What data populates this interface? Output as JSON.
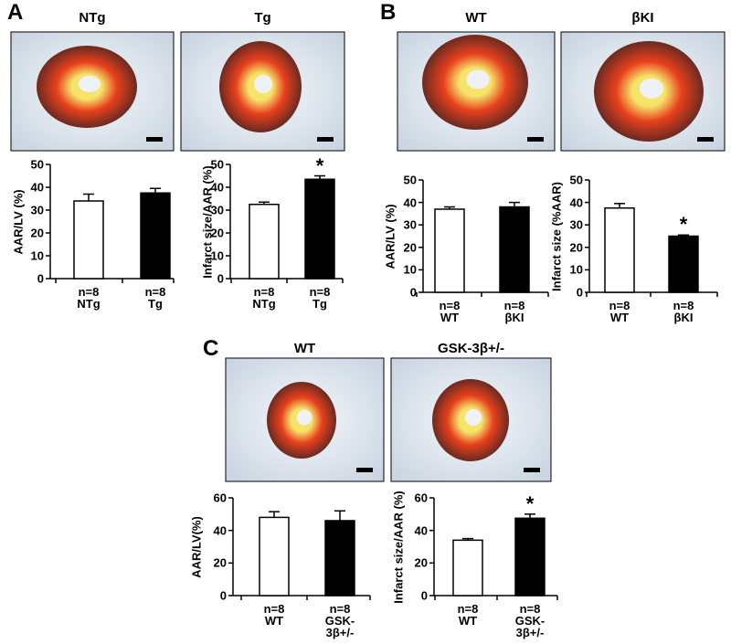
{
  "panels": [
    {
      "letter": "A",
      "image_labels": [
        "NTg",
        "Tg"
      ]
    },
    {
      "letter": "B",
      "image_labels": [
        "WT",
        "βKI"
      ]
    },
    {
      "letter": "C",
      "image_labels": [
        "WT",
        "GSK-3β+/-"
      ]
    }
  ],
  "chart_data": [
    {
      "type": "bar",
      "y_label": "AAR/LV (%)",
      "categories": [
        "NTg",
        "Tg"
      ],
      "n_labels": [
        "n=8",
        "n=8"
      ],
      "values": [
        34,
        37.5
      ],
      "errors": [
        3,
        2
      ],
      "colors": [
        "#ffffff",
        "#000000"
      ],
      "ylim": [
        0,
        50
      ],
      "yticks": [
        0,
        10,
        20,
        30,
        40,
        50
      ]
    },
    {
      "type": "bar",
      "y_label": "Infarct size/AAR (%)",
      "categories": [
        "NTg",
        "Tg"
      ],
      "n_labels": [
        "n=8",
        "n=8"
      ],
      "values": [
        32.5,
        43.5
      ],
      "errors": [
        1,
        1.5
      ],
      "colors": [
        "#ffffff",
        "#000000"
      ],
      "ylim": [
        0,
        50
      ],
      "yticks": [
        0,
        10,
        20,
        30,
        40,
        50
      ],
      "annotation": "*"
    },
    {
      "type": "bar",
      "y_label": "AAR/LV (%)",
      "categories": [
        "WT",
        "βKI"
      ],
      "n_labels": [
        "n=8",
        "n=8"
      ],
      "values": [
        37,
        38
      ],
      "errors": [
        1,
        2
      ],
      "colors": [
        "#ffffff",
        "#000000"
      ],
      "ylim": [
        0,
        50
      ],
      "yticks": [
        0,
        10,
        20,
        30,
        40,
        50
      ]
    },
    {
      "type": "bar",
      "y_label": "Infarct size (%AAR)",
      "categories": [
        "WT",
        "βKI"
      ],
      "n_labels": [
        "n=8",
        "n=8"
      ],
      "values": [
        37.5,
        25
      ],
      "errors": [
        2,
        0.5
      ],
      "colors": [
        "#ffffff",
        "#000000"
      ],
      "ylim": [
        0,
        50
      ],
      "yticks": [
        0,
        10,
        20,
        30,
        40,
        50
      ],
      "annotation": "*"
    },
    {
      "type": "bar",
      "y_label": "AAR/LV(%)",
      "categories": [
        "WT",
        "GSK-3β+/-"
      ],
      "n_labels": [
        "n=8",
        "n=8"
      ],
      "values": [
        48,
        46
      ],
      "errors": [
        3.5,
        6
      ],
      "colors": [
        "#ffffff",
        "#000000"
      ],
      "ylim": [
        0,
        60
      ],
      "yticks": [
        0,
        20,
        40,
        60
      ]
    },
    {
      "type": "bar",
      "y_label": "Infarct size/AAR (%)",
      "categories": [
        "WT",
        "GSK-3β+/-"
      ],
      "n_labels": [
        "n=8",
        "n=8"
      ],
      "values": [
        34,
        47.5
      ],
      "errors": [
        1,
        2.5
      ],
      "colors": [
        "#ffffff",
        "#000000"
      ],
      "ylim": [
        0,
        60
      ],
      "yticks": [
        0,
        20,
        40,
        60
      ],
      "annotation": "*"
    }
  ]
}
